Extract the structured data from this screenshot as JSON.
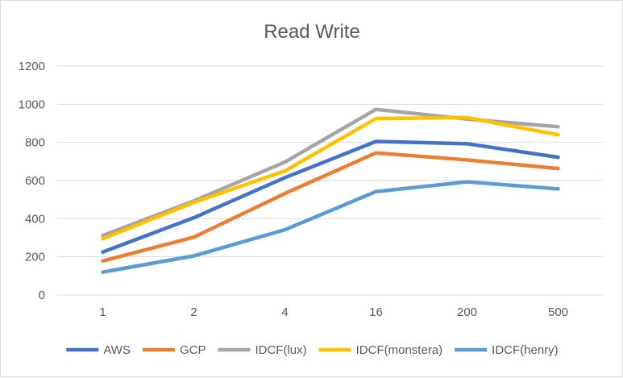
{
  "chart_data": {
    "type": "line",
    "title": "Read Write",
    "categories": [
      "1",
      "2",
      "4",
      "16",
      "200",
      "500"
    ],
    "ylim": [
      0,
      1200
    ],
    "yticks": [
      0,
      200,
      400,
      600,
      800,
      1000,
      1200
    ],
    "grid": true,
    "legend_position": "bottom",
    "series": [
      {
        "name": "AWS",
        "color": "#4472c4",
        "values": [
          225,
          405,
          615,
          805,
          793,
          722
        ]
      },
      {
        "name": "GCP",
        "color": "#ed7d31",
        "values": [
          178,
          303,
          532,
          745,
          708,
          663
        ]
      },
      {
        "name": "IDCF(lux)",
        "color": "#a5a5a5",
        "values": [
          312,
          493,
          697,
          973,
          922,
          882
        ]
      },
      {
        "name": "IDCF(monstera)",
        "color": "#ffc000",
        "values": [
          295,
          485,
          650,
          925,
          930,
          840
        ]
      },
      {
        "name": "IDCF(henry)",
        "color": "#5b9bd5",
        "values": [
          120,
          205,
          342,
          542,
          593,
          556
        ]
      }
    ]
  }
}
